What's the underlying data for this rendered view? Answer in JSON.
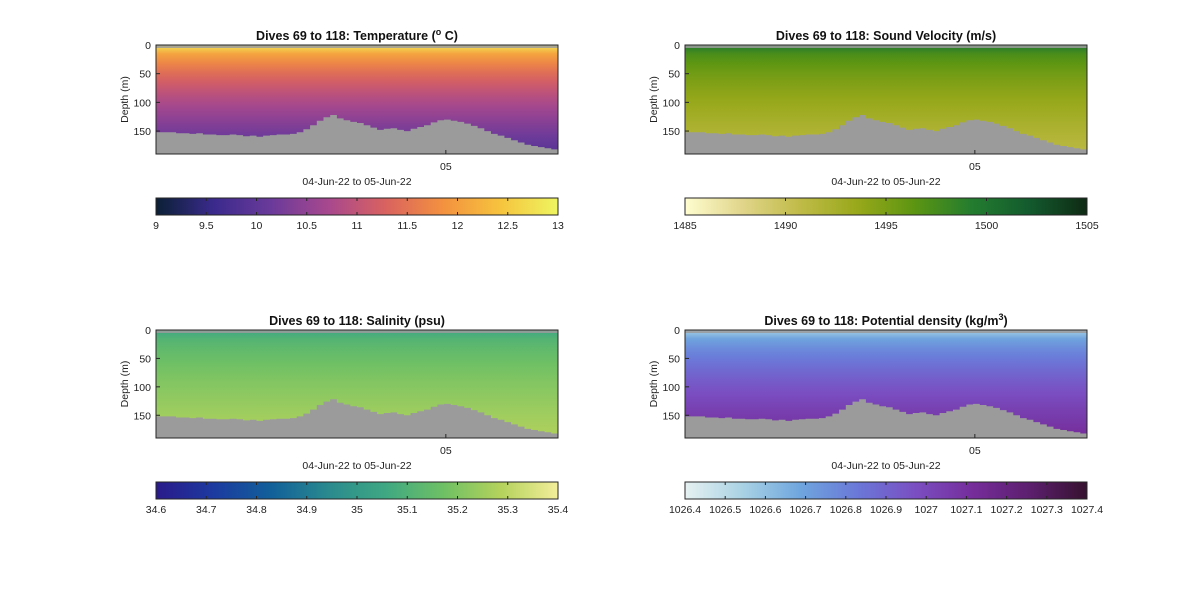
{
  "figure": {
    "background": "#ffffff",
    "seafloor_color": "#9b9b9b",
    "nodata_color": "#9b9b9b"
  },
  "chart_data": [
    {
      "type": "heatmap",
      "title": "Dives 69 to 118: Temperature (",
      "title_sup": "o",
      "title_end": " C)",
      "xlabel": "04-Jun-22 to 05-Jun-22",
      "ylabel": "Depth (m)",
      "x_tick_labels": [
        "05"
      ],
      "y_tick_labels": [
        "0",
        "50",
        "100",
        "150"
      ],
      "ylim": [
        0,
        190
      ],
      "colormap": "thermal",
      "colormap_stops": [
        "#0b2035",
        "#3a2a8c",
        "#6a3a9a",
        "#a8488e",
        "#d9625f",
        "#f3913f",
        "#f6c43e",
        "#eef560"
      ],
      "clim": [
        9,
        13
      ],
      "colorbar_ticks": [
        "9",
        "9.5",
        "10",
        "10.5",
        "11",
        "11.5",
        "12",
        "12.5",
        "13"
      ],
      "surface_value": 12.8,
      "deep_value": 9.9
    },
    {
      "type": "heatmap",
      "title": "Dives 69 to 118: Sound Velocity (m/s)",
      "xlabel": "04-Jun-22 to 05-Jun-22",
      "ylabel": "Depth (m)",
      "x_tick_labels": [
        "05"
      ],
      "y_tick_labels": [
        "0",
        "50",
        "100",
        "150"
      ],
      "ylim": [
        0,
        190
      ],
      "colormap": "speed",
      "colormap_stops": [
        "#fffdd0",
        "#e0d58a",
        "#c0bb48",
        "#98a81a",
        "#5c9512",
        "#237c2f",
        "#135a2e",
        "#0f2a13"
      ],
      "clim": [
        1485,
        1505
      ],
      "colorbar_ticks": [
        "1485",
        "1490",
        "1495",
        "1500",
        "1505"
      ],
      "surface_value": 1499.5,
      "deep_value": 1491.0
    },
    {
      "type": "heatmap",
      "title": "Dives 69 to 118: Salinity (psu)",
      "xlabel": "04-Jun-22 to 05-Jun-22",
      "ylabel": "Depth (m)",
      "x_tick_labels": [
        "05"
      ],
      "y_tick_labels": [
        "0",
        "50",
        "100",
        "150"
      ],
      "ylim": [
        0,
        190
      ],
      "colormap": "haline",
      "colormap_stops": [
        "#2a1a8a",
        "#1c3aa0",
        "#11609a",
        "#2a8a8e",
        "#3fa882",
        "#6ec064",
        "#b4d25c",
        "#f3ee9a"
      ],
      "clim": [
        34.6,
        35.4
      ],
      "colorbar_ticks": [
        "34.6",
        "34.7",
        "34.8",
        "34.9",
        "35",
        "35.1",
        "35.2",
        "35.3",
        "35.4"
      ],
      "surface_value": 35.05,
      "deep_value": 35.28
    },
    {
      "type": "heatmap",
      "title": "Dives 69 to 118: Potential density (kg/m",
      "title_sup": "3",
      "title_end": ")",
      "xlabel": "04-Jun-22 to 05-Jun-22",
      "ylabel": "Depth (m)",
      "x_tick_labels": [
        "05"
      ],
      "y_tick_labels": [
        "0",
        "50",
        "100",
        "150"
      ],
      "ylim": [
        0,
        190
      ],
      "colormap": "dense",
      "colormap_stops": [
        "#e6f1f1",
        "#a9d2e4",
        "#6fa6de",
        "#6a78d8",
        "#7a4fc2",
        "#762d9b",
        "#5c1f6e",
        "#36112f"
      ],
      "clim": [
        1026.4,
        1027.4
      ],
      "colorbar_ticks": [
        "1026.4",
        "1026.5",
        "1026.6",
        "1026.7",
        "1026.8",
        "1026.9",
        "1027",
        "1027.1",
        "1027.2",
        "1027.3",
        "1027.4"
      ],
      "surface_value": 1026.55,
      "deep_value": 1027.12
    }
  ]
}
